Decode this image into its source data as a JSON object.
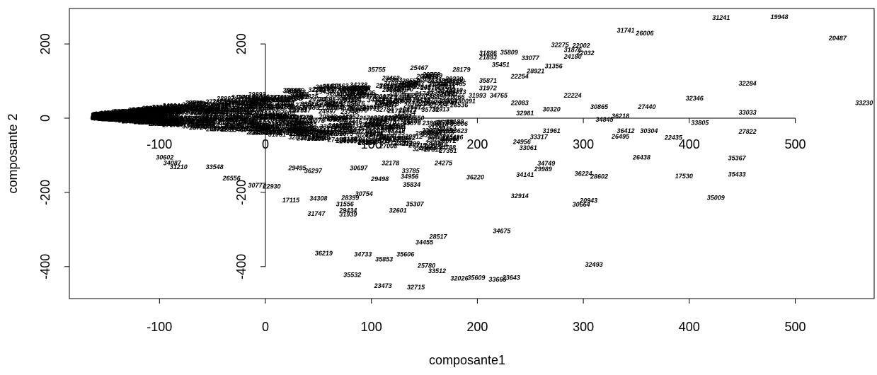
{
  "chart_data": {
    "type": "scatter",
    "title": "",
    "xlabel": "composante1",
    "ylabel": "composante 2",
    "xlim": [
      -183,
      575
    ],
    "ylim": [
      -485,
      295
    ],
    "xticks": [
      -100,
      0,
      100,
      200,
      300,
      400,
      500
    ],
    "yticks": [
      -400,
      -200,
      0,
      200
    ],
    "x_tick_labels": [
      "-100",
      "0",
      "100",
      "200",
      "300",
      "400",
      "500"
    ],
    "y_tick_labels": [
      "-400",
      "-200",
      "0",
      "200"
    ],
    "inner_axes": {
      "x_tick_labels": [
        "-100",
        "0",
        "100",
        "200",
        "300",
        "400",
        "500"
      ],
      "y_tick_labels": [
        "-400",
        "-200",
        "0",
        "200"
      ]
    },
    "points": [
      {
        "label": "31241",
        "x": 430,
        "y": 265
      },
      {
        "label": "19948",
        "x": 485,
        "y": 267
      },
      {
        "label": "31741",
        "x": 340,
        "y": 231
      },
      {
        "label": "26006",
        "x": 358,
        "y": 223
      },
      {
        "label": "20487",
        "x": 540,
        "y": 210
      },
      {
        "label": "32275",
        "x": 278,
        "y": 192
      },
      {
        "label": "22002",
        "x": 298,
        "y": 190
      },
      {
        "label": "31876",
        "x": 290,
        "y": 178
      },
      {
        "label": "22032",
        "x": 302,
        "y": 170
      },
      {
        "label": "24180",
        "x": 290,
        "y": 160
      },
      {
        "label": "35809",
        "x": 230,
        "y": 172
      },
      {
        "label": "33077",
        "x": 250,
        "y": 156
      },
      {
        "label": "31886",
        "x": 210,
        "y": 170
      },
      {
        "label": "21893",
        "x": 210,
        "y": 158
      },
      {
        "label": "35451",
        "x": 222,
        "y": 138
      },
      {
        "label": "31356",
        "x": 272,
        "y": 134
      },
      {
        "label": "28921",
        "x": 255,
        "y": 121
      },
      {
        "label": "35755",
        "x": 105,
        "y": 125
      },
      {
        "label": "25467",
        "x": 145,
        "y": 130
      },
      {
        "label": "28179",
        "x": 185,
        "y": 125
      },
      {
        "label": "22254",
        "x": 240,
        "y": 107
      },
      {
        "label": "35871",
        "x": 210,
        "y": 95
      },
      {
        "label": "33616",
        "x": 155,
        "y": 107
      },
      {
        "label": "26903",
        "x": 150,
        "y": 96
      },
      {
        "label": "30228",
        "x": 178,
        "y": 92
      },
      {
        "label": "31208",
        "x": 135,
        "y": 82
      },
      {
        "label": "31972",
        "x": 210,
        "y": 75
      },
      {
        "label": "32284",
        "x": 455,
        "y": 88
      },
      {
        "label": "32346",
        "x": 405,
        "y": 48
      },
      {
        "label": "22224",
        "x": 290,
        "y": 55
      },
      {
        "label": "31993",
        "x": 200,
        "y": 55
      },
      {
        "label": "34765",
        "x": 220,
        "y": 55
      },
      {
        "label": "31918",
        "x": 138,
        "y": 55
      },
      {
        "label": "33046",
        "x": 118,
        "y": 38
      },
      {
        "label": "22083",
        "x": 240,
        "y": 35
      },
      {
        "label": "30091",
        "x": 190,
        "y": 40
      },
      {
        "label": "28881",
        "x": 173,
        "y": 40
      },
      {
        "label": "27440",
        "x": 360,
        "y": 25
      },
      {
        "label": "30865",
        "x": 315,
        "y": 25
      },
      {
        "label": "30320",
        "x": 270,
        "y": 18
      },
      {
        "label": "33230",
        "x": 565,
        "y": 35
      },
      {
        "label": "33033",
        "x": 455,
        "y": 10
      },
      {
        "label": "36218",
        "x": 335,
        "y": 0
      },
      {
        "label": "34845",
        "x": 320,
        "y": -10
      },
      {
        "label": "32981",
        "x": 245,
        "y": 8
      },
      {
        "label": "33805",
        "x": 410,
        "y": -18
      },
      {
        "label": "27822",
        "x": 455,
        "y": -42
      },
      {
        "label": "36412",
        "x": 340,
        "y": -40
      },
      {
        "label": "30304",
        "x": 362,
        "y": -40
      },
      {
        "label": "26495",
        "x": 335,
        "y": -55
      },
      {
        "label": "22435",
        "x": 385,
        "y": -58
      },
      {
        "label": "31961",
        "x": 270,
        "y": -40
      },
      {
        "label": "33317",
        "x": 258,
        "y": -56
      },
      {
        "label": "24956",
        "x": 242,
        "y": -70
      },
      {
        "label": "33061",
        "x": 248,
        "y": -86
      },
      {
        "label": "35367",
        "x": 445,
        "y": -113
      },
      {
        "label": "26438",
        "x": 355,
        "y": -112
      },
      {
        "label": "34749",
        "x": 265,
        "y": -128
      },
      {
        "label": "29989",
        "x": 262,
        "y": -143
      },
      {
        "label": "35433",
        "x": 445,
        "y": -157
      },
      {
        "label": "17530",
        "x": 395,
        "y": -162
      },
      {
        "label": "36224",
        "x": 300,
        "y": -155
      },
      {
        "label": "28602",
        "x": 315,
        "y": -163
      },
      {
        "label": "34141",
        "x": 245,
        "y": -158
      },
      {
        "label": "32914",
        "x": 240,
        "y": -215
      },
      {
        "label": "20943",
        "x": 305,
        "y": -228
      },
      {
        "label": "30664",
        "x": 298,
        "y": -238
      },
      {
        "label": "35009",
        "x": 425,
        "y": -220
      },
      {
        "label": "34675",
        "x": 223,
        "y": -310
      },
      {
        "label": "32493",
        "x": 310,
        "y": -400
      },
      {
        "label": "28517",
        "x": 163,
        "y": -325
      },
      {
        "label": "34455",
        "x": 150,
        "y": -340
      },
      {
        "label": "36219",
        "x": 55,
        "y": -370
      },
      {
        "label": "34733",
        "x": 92,
        "y": -373
      },
      {
        "label": "35606",
        "x": 132,
        "y": -373
      },
      {
        "label": "35853",
        "x": 112,
        "y": -386
      },
      {
        "label": "25780",
        "x": 152,
        "y": -403
      },
      {
        "label": "33512",
        "x": 162,
        "y": -418
      },
      {
        "label": "35532",
        "x": 82,
        "y": -428
      },
      {
        "label": "32026",
        "x": 183,
        "y": -438
      },
      {
        "label": "35609",
        "x": 199,
        "y": -436
      },
      {
        "label": "33665",
        "x": 219,
        "y": -440
      },
      {
        "label": "23643",
        "x": 232,
        "y": -436
      },
      {
        "label": "23473",
        "x": 111,
        "y": -458
      },
      {
        "label": "32715",
        "x": 142,
        "y": -461
      },
      {
        "label": "35834",
        "x": 138,
        "y": -185
      },
      {
        "label": "35307",
        "x": 141,
        "y": -237
      },
      {
        "label": "32601",
        "x": 125,
        "y": -255
      },
      {
        "label": "29498",
        "x": 108,
        "y": -170
      },
      {
        "label": "30754",
        "x": 93,
        "y": -210
      },
      {
        "label": "28399",
        "x": 80,
        "y": -220
      },
      {
        "label": "31556",
        "x": 75,
        "y": -237
      },
      {
        "label": "29434",
        "x": 78,
        "y": -255
      },
      {
        "label": "31939",
        "x": 78,
        "y": -265
      },
      {
        "label": "31747",
        "x": 48,
        "y": -263
      },
      {
        "label": "34308",
        "x": 50,
        "y": -222
      },
      {
        "label": "17115",
        "x": 24,
        "y": -227
      },
      {
        "label": "30777",
        "x": -8,
        "y": -187
      },
      {
        "label": "22930",
        "x": 6,
        "y": -190
      },
      {
        "label": "26556",
        "x": -32,
        "y": -168
      },
      {
        "label": "33548",
        "x": -48,
        "y": -137
      },
      {
        "label": "30602",
        "x": -95,
        "y": -112
      },
      {
        "label": "34087",
        "x": -88,
        "y": -127
      },
      {
        "label": "31210",
        "x": -82,
        "y": -137
      },
      {
        "label": "29495",
        "x": 30,
        "y": -140
      },
      {
        "label": "36297",
        "x": 45,
        "y": -148
      },
      {
        "label": "30697",
        "x": 88,
        "y": -140
      },
      {
        "label": "32178",
        "x": 118,
        "y": -127
      },
      {
        "label": "34956",
        "x": 136,
        "y": -163
      },
      {
        "label": "33785",
        "x": 137,
        "y": -148
      },
      {
        "label": "24275",
        "x": 168,
        "y": -127
      },
      {
        "label": "36220",
        "x": 198,
        "y": -165
      }
    ]
  }
}
